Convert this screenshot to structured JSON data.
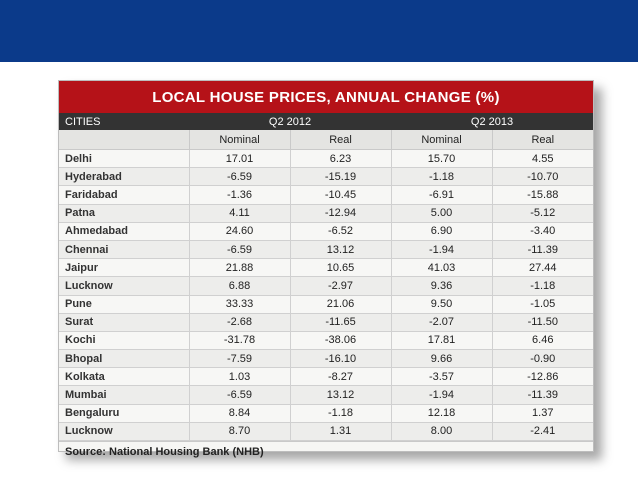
{
  "table": {
    "title": "LOCAL HOUSE PRICES, ANNUAL CHANGE (%)",
    "cities_header": "CITIES",
    "period1": "Q2 2012",
    "period2": "Q2 2013",
    "sub_headers": [
      "Nominal",
      "Real",
      "Nominal",
      "Real"
    ],
    "rows": [
      {
        "city": "Delhi",
        "values": [
          "17.01",
          "6.23",
          "15.70",
          "4.55"
        ]
      },
      {
        "city": "Hyderabad",
        "values": [
          "-6.59",
          "-15.19",
          "-1.18",
          "-10.70"
        ]
      },
      {
        "city": "Faridabad",
        "values": [
          "-1.36",
          "-10.45",
          "-6.91",
          "-15.88"
        ]
      },
      {
        "city": "Patna",
        "values": [
          "4.11",
          "-12.94",
          "5.00",
          "-5.12"
        ]
      },
      {
        "city": "Ahmedabad",
        "values": [
          "24.60",
          "-6.52",
          "6.90",
          "-3.40"
        ]
      },
      {
        "city": "Chennai",
        "values": [
          "-6.59",
          "13.12",
          "-1.94",
          "-11.39"
        ]
      },
      {
        "city": "Jaipur",
        "values": [
          "21.88",
          "10.65",
          "41.03",
          "27.44"
        ]
      },
      {
        "city": "Lucknow",
        "values": [
          "6.88",
          "-2.97",
          "9.36",
          "-1.18"
        ]
      },
      {
        "city": "Pune",
        "values": [
          "33.33",
          "21.06",
          "9.50",
          "-1.05"
        ]
      },
      {
        "city": "Surat",
        "values": [
          "-2.68",
          "-11.65",
          "-2.07",
          "-11.50"
        ]
      },
      {
        "city": "Kochi",
        "values": [
          "-31.78",
          "-38.06",
          "17.81",
          "6.46"
        ]
      },
      {
        "city": "Bhopal",
        "values": [
          "-7.59",
          "-16.10",
          "9.66",
          "-0.90"
        ]
      },
      {
        "city": "Kolkata",
        "values": [
          "1.03",
          "-8.27",
          "-3.57",
          "-12.86"
        ]
      },
      {
        "city": "Mumbai",
        "values": [
          "-6.59",
          "13.12",
          "-1.94",
          "-11.39"
        ]
      },
      {
        "city": "Bengaluru",
        "values": [
          "8.84",
          "-1.18",
          "12.18",
          "1.37"
        ]
      },
      {
        "city": "Lucknow",
        "values": [
          "8.70",
          "1.31",
          "8.00",
          "-2.41"
        ]
      }
    ],
    "source": "Source: National Housing Bank (NHB)"
  },
  "colors": {
    "top_band": "#0b3a8a",
    "title_bar": "#b51218",
    "header_bar": "#333333"
  }
}
